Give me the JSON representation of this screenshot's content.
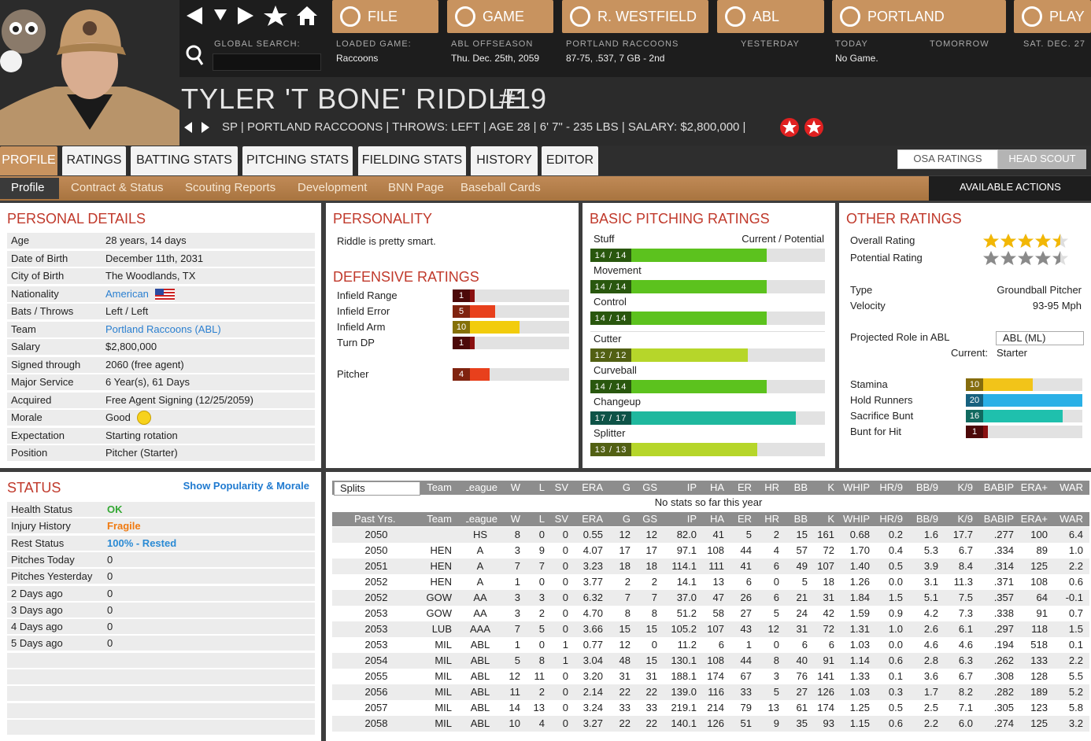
{
  "nav": {
    "buttons": [
      "FILE",
      "GAME",
      "R. WESTFIELD",
      "ABL",
      "PORTLAND",
      "PLAY"
    ],
    "search_label": "GLOBAL SEARCH:",
    "info": [
      {
        "label": "LOADED GAME:",
        "value": "Raccoons"
      },
      {
        "label": "ABL OFFSEASON",
        "value": "Thu. Dec. 25th, 2059"
      },
      {
        "label": "PORTLAND RACCOONS",
        "value": "87-75, .537, 7 GB - 2nd"
      },
      {
        "label": "YESTERDAY"
      },
      {
        "label": "TODAY",
        "value": "No Game."
      },
      {
        "label": "TOMORROW"
      },
      {
        "label": "SAT. DEC. 27"
      }
    ]
  },
  "player": {
    "name": "TYLER 'T BONE' RIDDLE",
    "number": "#19",
    "info": "SP | PORTLAND RACCOONS | THROWS: LEFT | AGE 28 | 6' 7\" - 235 LBS | SALARY: $2,800,000 |"
  },
  "tabs": {
    "main": [
      "PROFILE",
      "RATINGS",
      "BATTING STATS",
      "PITCHING STATS",
      "FIELDING STATS",
      "HISTORY",
      "EDITOR"
    ],
    "sub": [
      "Profile",
      "Contract & Status",
      "Scouting Reports",
      "Development",
      "BNN Page",
      "Baseball Cards"
    ],
    "scout": [
      "OSA RATINGS",
      "HEAD SCOUT"
    ],
    "actions": "AVAILABLE ACTIONS"
  },
  "personal_details": {
    "title": "PERSONAL DETAILS",
    "rows": [
      {
        "label": "Age",
        "value": "28 years, 14 days"
      },
      {
        "label": "Date of Birth",
        "value": "December 11th, 2031"
      },
      {
        "label": "City of Birth",
        "value": "The Woodlands, TX"
      },
      {
        "label": "Nationality",
        "value": "American",
        "color": "#2a7fd0"
      },
      {
        "label": "Bats / Throws",
        "value": "Left / Left"
      },
      {
        "label": "Team",
        "value": "Portland Raccoons (ABL)",
        "color": "#2a7fd0"
      },
      {
        "label": "Salary",
        "value": "$2,800,000"
      },
      {
        "label": "Signed through",
        "value": "2060 (free agent)"
      },
      {
        "label": "Major Service",
        "value": "6 Year(s), 61 Days"
      },
      {
        "label": "Acquired",
        "value": "Free Agent Signing (12/25/2059)"
      },
      {
        "label": "Morale",
        "value": "Good"
      },
      {
        "label": "Expectation",
        "value": "Starting rotation"
      },
      {
        "label": "Position",
        "value": "Pitcher (Starter)"
      }
    ]
  },
  "personality": {
    "title": "PERSONALITY",
    "text": "Riddle is pretty smart."
  },
  "defensive": {
    "title": "DEFENSIVE RATINGS",
    "rows": [
      {
        "label": "Infield Range",
        "value": 1,
        "color": "#8a1010"
      },
      {
        "label": "Infield Error",
        "value": 5,
        "color": "#e8401c"
      },
      {
        "label": "Infield Arm",
        "value": 10,
        "color": "#f2cc0c"
      },
      {
        "label": "Turn DP",
        "value": 1,
        "color": "#8a1010"
      },
      {
        "label": "Pitcher",
        "value": 4,
        "color": "#e8401c"
      }
    ]
  },
  "pitching": {
    "title": "BASIC PITCHING RATINGS",
    "header": "Current / Potential",
    "rows": [
      {
        "name": "Stuff",
        "current": 14,
        "potential": 14,
        "label": "14 / 14",
        "color": "#5cc21e"
      },
      {
        "name": "Movement",
        "current": 14,
        "potential": 14,
        "label": "14 / 14",
        "color": "#5cc21e"
      },
      {
        "name": "Control",
        "current": 14,
        "potential": 14,
        "label": "14 / 14",
        "color": "#5cc21e"
      },
      {
        "name": "Cutter",
        "current": 12,
        "potential": 12,
        "label": "12 / 12",
        "color": "#b6d62a"
      },
      {
        "name": "Curveball",
        "current": 14,
        "potential": 14,
        "label": "14 / 14",
        "color": "#5cc21e"
      },
      {
        "name": "Changeup",
        "current": 17,
        "potential": 17,
        "label": "17 / 17",
        "color": "#1fb89e"
      },
      {
        "name": "Splitter",
        "current": 13,
        "potential": 13,
        "label": "13 / 13",
        "color": "#b6d62a"
      }
    ]
  },
  "other": {
    "title": "OTHER RATINGS",
    "stars": [
      {
        "label": "Overall Rating",
        "value": 4.5,
        "color": "#f2b705"
      },
      {
        "label": "Potential Rating",
        "value": 4.5,
        "color": "#8a8a8a"
      }
    ],
    "type_label": "Type",
    "type": "Groundball Pitcher",
    "velocity_label": "Velocity",
    "velocity": "93-95 Mph",
    "role_label": "Projected Role in ABL",
    "role": "ABL (ML)",
    "current_label": "Current:",
    "current": "Starter",
    "rows": [
      {
        "label": "Stamina",
        "value": 10,
        "color": "#f2c419"
      },
      {
        "label": "Hold Runners",
        "value": 20,
        "color": "#2ab0e6"
      },
      {
        "label": "Sacrifice Bunt",
        "value": 16,
        "color": "#1fc0ad"
      },
      {
        "label": "Bunt for Hit",
        "value": 1,
        "color": "#8a1010"
      }
    ]
  },
  "status": {
    "title": "STATUS",
    "link": "Show Popularity & Morale",
    "rows": [
      {
        "label": "Health Status",
        "value": "OK",
        "color": "#33a833"
      },
      {
        "label": "Injury History",
        "value": "Fragile",
        "color": "#f07a10"
      },
      {
        "label": "Rest Status",
        "value": "100% - Rested",
        "color": "#2a8ad4"
      },
      {
        "label": "Pitches Today",
        "value": "0"
      },
      {
        "label": "Pitches Yesterday",
        "value": "0"
      },
      {
        "label": "2 Days ago",
        "value": "0"
      },
      {
        "label": "3 Days ago",
        "value": "0"
      },
      {
        "label": "4 Days ago",
        "value": "0"
      },
      {
        "label": "5 Days ago",
        "value": "0"
      }
    ]
  },
  "stats": {
    "splits": "Splits",
    "columns": [
      "Team",
      "League",
      "W",
      "L",
      "SV",
      "ERA",
      "G",
      "GS",
      "IP",
      "HA",
      "ER",
      "HR",
      "BB",
      "K",
      "WHIP",
      "HR/9",
      "BB/9",
      "K/9",
      "BABIP",
      "ERA+",
      "WAR"
    ],
    "empty": "No stats so far this year",
    "past": "Past Yrs.",
    "rows": [
      [
        "2050",
        null,
        "HS",
        "8",
        "0",
        "0",
        "0.55",
        "12",
        "12",
        "82.0",
        "41",
        "5",
        "2",
        "15",
        "161",
        "0.68",
        "0.2",
        "1.6",
        "17.7",
        ".277",
        "100",
        "6.4"
      ],
      [
        "2050",
        "HEN",
        "A",
        "3",
        "9",
        "0",
        "4.07",
        "17",
        "17",
        "97.1",
        "108",
        "44",
        "4",
        "57",
        "72",
        "1.70",
        "0.4",
        "5.3",
        "6.7",
        ".334",
        "89",
        "1.0"
      ],
      [
        "2051",
        "HEN",
        "A",
        "7",
        "7",
        "0",
        "3.23",
        "18",
        "18",
        "114.1",
        "111",
        "41",
        "6",
        "49",
        "107",
        "1.40",
        "0.5",
        "3.9",
        "8.4",
        ".314",
        "125",
        "2.2"
      ],
      [
        "2052",
        "HEN",
        "A",
        "1",
        "0",
        "0",
        "3.77",
        "2",
        "2",
        "14.1",
        "13",
        "6",
        "0",
        "5",
        "18",
        "1.26",
        "0.0",
        "3.1",
        "11.3",
        ".371",
        "108",
        "0.6"
      ],
      [
        "2052",
        "GOW",
        "AA",
        "3",
        "3",
        "0",
        "6.32",
        "7",
        "7",
        "37.0",
        "47",
        "26",
        "6",
        "21",
        "31",
        "1.84",
        "1.5",
        "5.1",
        "7.5",
        ".357",
        "64",
        "-0.1"
      ],
      [
        "2053",
        "GOW",
        "AA",
        "3",
        "2",
        "0",
        "4.70",
        "8",
        "8",
        "51.2",
        "58",
        "27",
        "5",
        "24",
        "42",
        "1.59",
        "0.9",
        "4.2",
        "7.3",
        ".338",
        "91",
        "0.7"
      ],
      [
        "2053",
        "LUB",
        "AAA",
        "7",
        "5",
        "0",
        "3.66",
        "15",
        "15",
        "105.2",
        "107",
        "43",
        "12",
        "31",
        "72",
        "1.31",
        "1.0",
        "2.6",
        "6.1",
        ".297",
        "118",
        "1.5"
      ],
      [
        "2053",
        "MIL",
        "ABL",
        "1",
        "0",
        "1",
        "0.77",
        "12",
        "0",
        "11.2",
        "6",
        "1",
        "0",
        "6",
        "6",
        "1.03",
        "0.0",
        "4.6",
        "4.6",
        ".194",
        "518",
        "0.1"
      ],
      [
        "2054",
        "MIL",
        "ABL",
        "5",
        "8",
        "1",
        "3.04",
        "48",
        "15",
        "130.1",
        "108",
        "44",
        "8",
        "40",
        "91",
        "1.14",
        "0.6",
        "2.8",
        "6.3",
        ".262",
        "133",
        "2.2"
      ],
      [
        "2055",
        "MIL",
        "ABL",
        "12",
        "11",
        "0",
        "3.20",
        "31",
        "31",
        "188.1",
        "174",
        "67",
        "3",
        "76",
        "141",
        "1.33",
        "0.1",
        "3.6",
        "6.7",
        ".308",
        "128",
        "5.5"
      ],
      [
        "2056",
        "MIL",
        "ABL",
        "11",
        "2",
        "0",
        "2.14",
        "22",
        "22",
        "139.0",
        "116",
        "33",
        "5",
        "27",
        "126",
        "1.03",
        "0.3",
        "1.7",
        "8.2",
        ".282",
        "189",
        "5.2"
      ],
      [
        "2057",
        "MIL",
        "ABL",
        "14",
        "13",
        "0",
        "3.24",
        "33",
        "33",
        "219.1",
        "214",
        "79",
        "13",
        "61",
        "174",
        "1.25",
        "0.5",
        "2.5",
        "7.1",
        ".305",
        "123",
        "5.8"
      ],
      [
        "2058",
        "MIL",
        "ABL",
        "10",
        "4",
        "0",
        "3.27",
        "22",
        "22",
        "140.1",
        "126",
        "51",
        "9",
        "35",
        "93",
        "1.15",
        "0.6",
        "2.2",
        "6.0",
        ".274",
        "125",
        "3.2"
      ]
    ]
  }
}
